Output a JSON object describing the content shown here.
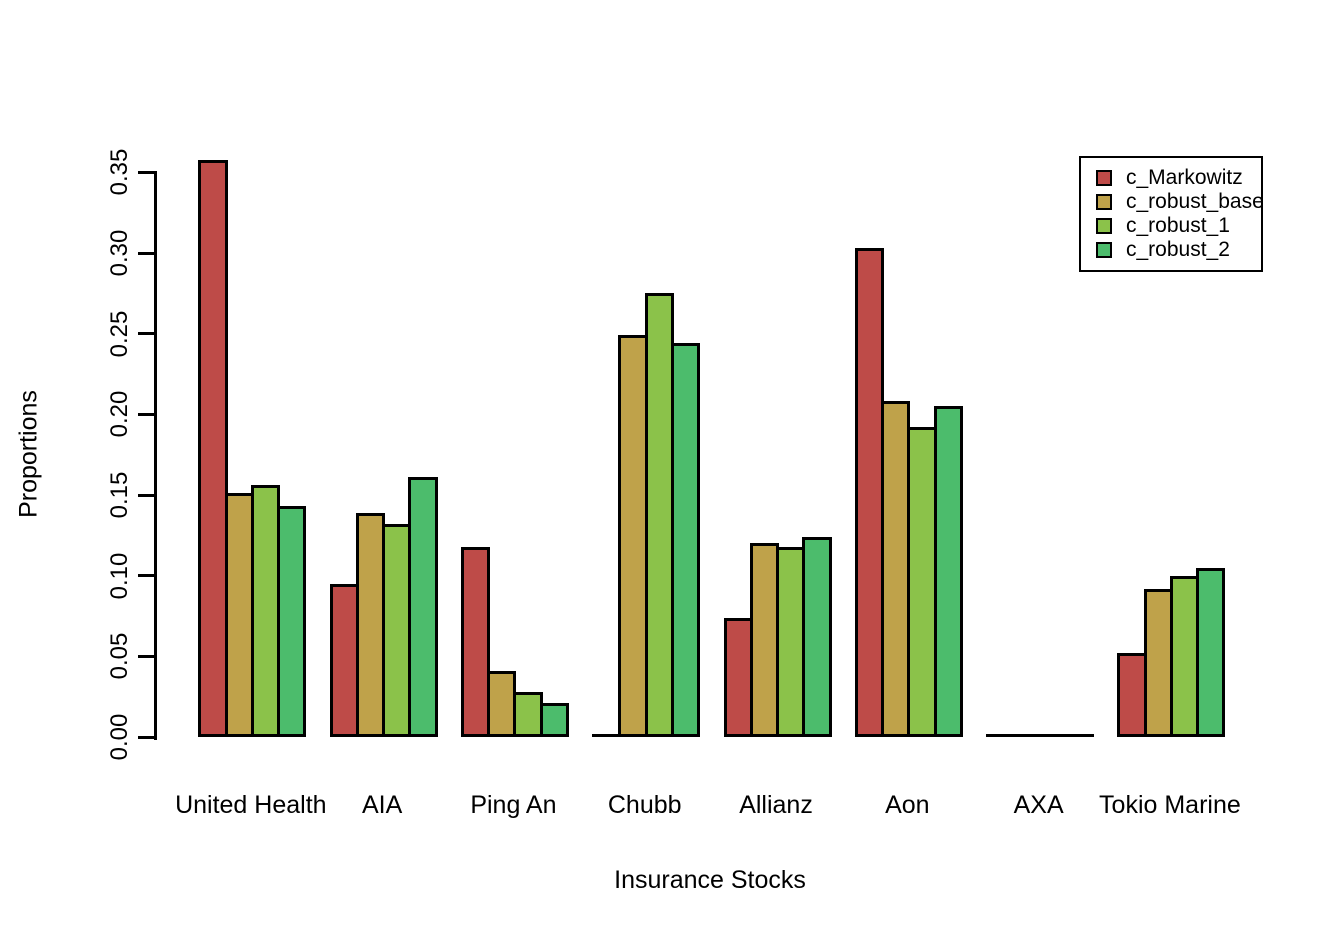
{
  "chart_data": {
    "type": "bar",
    "title": "",
    "xlabel": "Insurance Stocks",
    "ylabel": "Proportions",
    "categories": [
      "United Health",
      "AIA",
      "Ping An",
      "Chubb",
      "Allianz",
      "Aon",
      "AXA",
      "Tokio Marine"
    ],
    "series": [
      {
        "name": "c_Markowitz",
        "color": "#be4b48",
        "values": [
          0.358,
          0.095,
          0.118,
          0.0,
          0.074,
          0.303,
          0.0,
          0.052
        ]
      },
      {
        "name": "c_robust_base",
        "color": "#bfa24a",
        "values": [
          0.151,
          0.139,
          0.041,
          0.249,
          0.12,
          0.208,
          0.0,
          0.092
        ]
      },
      {
        "name": "c_robust_1",
        "color": "#8bc24a",
        "values": [
          0.156,
          0.132,
          0.028,
          0.275,
          0.118,
          0.192,
          0.0,
          0.1
        ]
      },
      {
        "name": "c_robust_2",
        "color": "#4cbc6c",
        "values": [
          0.143,
          0.161,
          0.021,
          0.244,
          0.124,
          0.205,
          0.0,
          0.105
        ]
      }
    ],
    "y_ticks": [
      "0.00",
      "0.05",
      "0.10",
      "0.15",
      "0.20",
      "0.25",
      "0.30",
      "0.35"
    ],
    "ylim": [
      0.0,
      0.37
    ],
    "y_tick_step": 0.05,
    "grid": false,
    "legend_position": "top-right",
    "bar_border_color": "#000000",
    "axis_color": "#000000",
    "background_color": "#ffffff"
  }
}
